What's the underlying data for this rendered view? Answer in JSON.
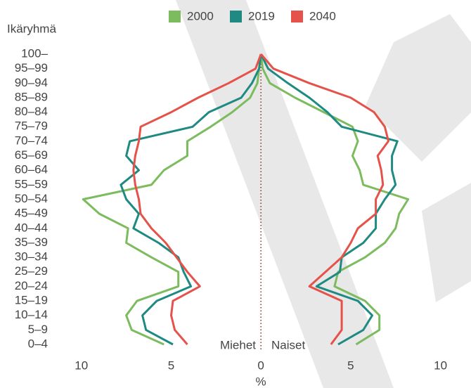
{
  "chart_data": {
    "type": "pyramid-line",
    "y_label": "Ikäryhmä",
    "x_label": "%",
    "side_labels": [
      "Miehet",
      "Naiset"
    ],
    "categories": [
      "0–4",
      "5–9",
      "10–14",
      "15–19",
      "20–24",
      "25–29",
      "30–34",
      "35–39",
      "40–44",
      "45–49",
      "50–54",
      "55–59",
      "60–64",
      "65–69",
      "70–74",
      "75–79",
      "80–84",
      "85–89",
      "90–94",
      "95–99",
      "100–"
    ],
    "series": [
      {
        "name": "2000",
        "color": "#7cbb5e",
        "men": [
          5.4,
          7.2,
          7.5,
          6.9,
          4.6,
          4.6,
          6.1,
          7.5,
          7.4,
          9.0,
          9.9,
          6.1,
          5.4,
          4.1,
          4.1,
          2.8,
          1.6,
          0.6,
          0.2,
          0.1,
          0.0
        ],
        "women": [
          5.3,
          6.6,
          6.6,
          5.8,
          4.1,
          4.3,
          5.8,
          6.9,
          7.5,
          7.7,
          8.2,
          5.7,
          5.5,
          5.1,
          5.4,
          5.1,
          3.5,
          1.9,
          0.5,
          0.1,
          0.0
        ]
      },
      {
        "name": "2019",
        "color": "#1f8a82",
        "men": [
          4.9,
          6.4,
          6.6,
          5.8,
          3.9,
          4.3,
          4.6,
          5.7,
          7.1,
          6.8,
          7.5,
          7.8,
          6.8,
          7.5,
          7.3,
          3.8,
          2.9,
          1.1,
          0.5,
          0.1,
          0.0
        ],
        "women": [
          4.3,
          5.7,
          6.2,
          5.4,
          3.1,
          4.4,
          4.5,
          5.7,
          6.4,
          6.4,
          6.9,
          7.5,
          7.3,
          7.3,
          7.6,
          4.5,
          3.7,
          2.7,
          1.5,
          0.4,
          0.0
        ]
      },
      {
        "name": "2040",
        "color": "#e5524a",
        "men": [
          4.1,
          4.8,
          5.0,
          4.9,
          3.4,
          4.1,
          4.7,
          5.3,
          6.1,
          6.7,
          6.8,
          7.0,
          7.1,
          7.0,
          6.8,
          6.7,
          5.0,
          3.5,
          1.8,
          0.3,
          0.0
        ],
        "women": [
          3.9,
          4.5,
          4.5,
          4.5,
          2.7,
          3.6,
          4.5,
          5.0,
          5.4,
          6.4,
          6.4,
          6.8,
          6.7,
          6.5,
          7.1,
          6.9,
          6.3,
          5.0,
          2.7,
          0.7,
          0.0
        ]
      }
    ],
    "xlim": [
      -11.4,
      11.7
    ],
    "xticks": [
      {
        "value": -10,
        "label": "10"
      },
      {
        "value": -5,
        "label": "5"
      },
      0,
      5,
      10
    ]
  }
}
